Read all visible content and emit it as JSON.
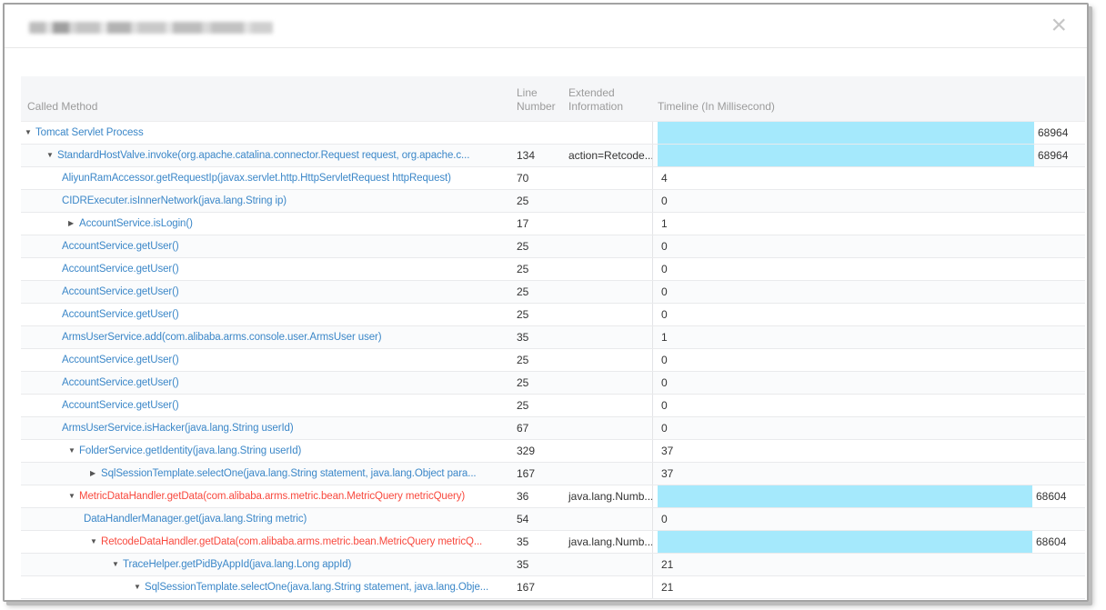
{
  "modal": {
    "title_redacted": true,
    "close_glyph": "×"
  },
  "table": {
    "columns": [
      "Called Method",
      "Line Number",
      "Extended Information",
      "Timeline (In Millisecond)"
    ],
    "timeline_max_ms": 68964,
    "colors": {
      "method_blue": "#3b87c8",
      "method_red": "#f8493e",
      "bar_cyan": "#a5e9fc"
    },
    "rows": [
      {
        "method": "Tomcat Servlet Process",
        "level": 0,
        "caret": "down",
        "color": "blue",
        "line": "",
        "ext": "",
        "time": 68964
      },
      {
        "method": "StandardHostValve.invoke(org.apache.catalina.connector.Request request, org.apache.c...",
        "level": 1,
        "caret": "down",
        "color": "blue",
        "line": "134",
        "ext": "action=Retcode...",
        "time": 68964
      },
      {
        "method": "AliyunRamAccessor.getRequestIp(javax.servlet.http.HttpServletRequest httpRequest)",
        "level": 2,
        "caret": null,
        "color": "blue",
        "line": "70",
        "ext": "",
        "time": 4
      },
      {
        "method": "CIDRExecuter.isInnerNetwork(java.lang.String ip)",
        "level": 2,
        "caret": null,
        "color": "blue",
        "line": "25",
        "ext": "",
        "time": 0
      },
      {
        "method": "AccountService.isLogin()",
        "level": 2,
        "caret": "right",
        "color": "blue",
        "line": "17",
        "ext": "",
        "time": 1
      },
      {
        "method": "AccountService.getUser()",
        "level": 2,
        "caret": null,
        "color": "blue",
        "line": "25",
        "ext": "",
        "time": 0
      },
      {
        "method": "AccountService.getUser()",
        "level": 2,
        "caret": null,
        "color": "blue",
        "line": "25",
        "ext": "",
        "time": 0
      },
      {
        "method": "AccountService.getUser()",
        "level": 2,
        "caret": null,
        "color": "blue",
        "line": "25",
        "ext": "",
        "time": 0
      },
      {
        "method": "AccountService.getUser()",
        "level": 2,
        "caret": null,
        "color": "blue",
        "line": "25",
        "ext": "",
        "time": 0
      },
      {
        "method": "ArmsUserService.add(com.alibaba.arms.console.user.ArmsUser user)",
        "level": 2,
        "caret": null,
        "color": "blue",
        "line": "35",
        "ext": "",
        "time": 1
      },
      {
        "method": "AccountService.getUser()",
        "level": 2,
        "caret": null,
        "color": "blue",
        "line": "25",
        "ext": "",
        "time": 0
      },
      {
        "method": "AccountService.getUser()",
        "level": 2,
        "caret": null,
        "color": "blue",
        "line": "25",
        "ext": "",
        "time": 0
      },
      {
        "method": "AccountService.getUser()",
        "level": 2,
        "caret": null,
        "color": "blue",
        "line": "25",
        "ext": "",
        "time": 0
      },
      {
        "method": "ArmsUserService.isHacker(java.lang.String userId)",
        "level": 2,
        "caret": null,
        "color": "blue",
        "line": "67",
        "ext": "",
        "time": 0
      },
      {
        "method": "FolderService.getIdentity(java.lang.String userId)",
        "level": 2,
        "caret": "down",
        "color": "blue",
        "line": "329",
        "ext": "",
        "time": 37
      },
      {
        "method": "SqlSessionTemplate.selectOne(java.lang.String statement, java.lang.Object para...",
        "level": 3,
        "caret": "right",
        "color": "blue",
        "line": "167",
        "ext": "",
        "time": 37
      },
      {
        "method": "MetricDataHandler.getData(com.alibaba.arms.metric.bean.MetricQuery metricQuery)",
        "level": 2,
        "caret": "down",
        "color": "red",
        "line": "36",
        "ext": "java.lang.Numb...",
        "time": 68604
      },
      {
        "method": "DataHandlerManager.get(java.lang.String metric)",
        "level": 3,
        "caret": null,
        "color": "blue",
        "line": "54",
        "ext": "",
        "time": 0
      },
      {
        "method": "RetcodeDataHandler.getData(com.alibaba.arms.metric.bean.MetricQuery metricQ...",
        "level": 3,
        "caret": "down",
        "color": "red",
        "line": "35",
        "ext": "java.lang.Numb...",
        "time": 68604
      },
      {
        "method": "TraceHelper.getPidByAppId(java.lang.Long appId)",
        "level": 4,
        "caret": "down",
        "color": "blue",
        "line": "35",
        "ext": "",
        "time": 21
      },
      {
        "method": "SqlSessionTemplate.selectOne(java.lang.String statement, java.lang.Obje...",
        "level": 5,
        "caret": "down",
        "color": "blue",
        "line": "167",
        "ext": "",
        "time": 21
      }
    ]
  }
}
